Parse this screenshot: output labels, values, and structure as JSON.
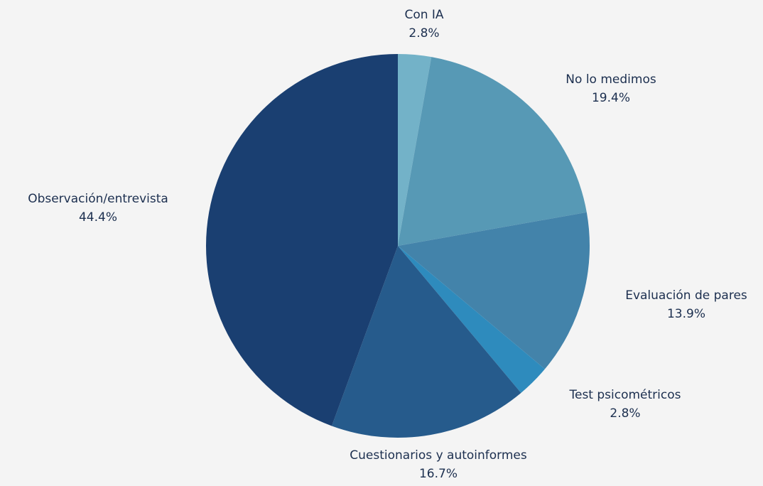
{
  "chart_data": {
    "type": "pie",
    "slices": [
      {
        "label": "Con IA",
        "value": 2.8,
        "display": "2.8%",
        "color": "#73b2c8"
      },
      {
        "label": "No lo medimos",
        "value": 19.4,
        "display": "19.4%",
        "color": "#5799b5"
      },
      {
        "label": "Evaluación de pares",
        "value": 13.9,
        "display": "13.9%",
        "color": "#4383aa"
      },
      {
        "label": "Test psicométricos",
        "value": 2.8,
        "display": "2.8%",
        "color": "#2e8bbd"
      },
      {
        "label": "Cuestionarios y autoinformes",
        "value": 16.7,
        "display": "16.7%",
        "color": "#265b8c"
      },
      {
        "label": "Observación/entrevista",
        "value": 44.4,
        "display": "44.4%",
        "color": "#1a3f71"
      }
    ],
    "start": "12 o'clock",
    "direction": "clockwise",
    "background": "#f4f4f4",
    "label_color": "#1c2f4f"
  }
}
